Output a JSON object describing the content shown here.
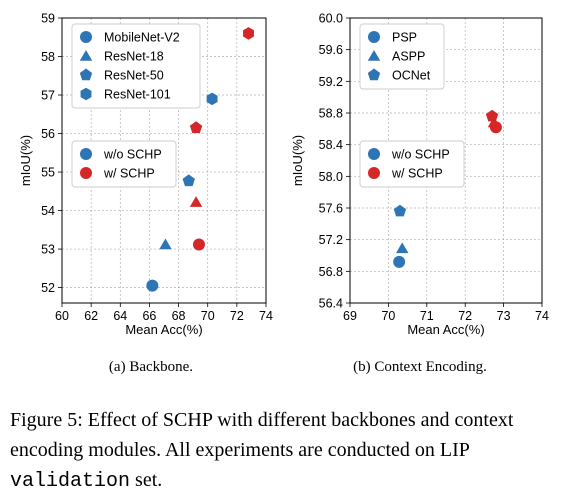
{
  "chart_data": [
    {
      "type": "scatter",
      "xlabel": "Mean Acc(%)",
      "ylabel": "mIoU(%)",
      "xlim": [
        60,
        74
      ],
      "ylim": [
        51.6,
        59
      ],
      "xticks": [
        "60",
        "62",
        "64",
        "66",
        "68",
        "70",
        "72",
        "74"
      ],
      "yticks": [
        "52",
        "53",
        "54",
        "55",
        "56",
        "57",
        "58",
        "59"
      ],
      "grid": true,
      "legends": [
        {
          "placement": "top-left",
          "entries": [
            {
              "label": "MobileNet-V2",
              "marker": "circle"
            },
            {
              "label": "ResNet-18",
              "marker": "triangle"
            },
            {
              "label": "ResNet-50",
              "marker": "pentagon"
            },
            {
              "label": "ResNet-101",
              "marker": "hexagon"
            }
          ]
        },
        {
          "placement": "center-left",
          "entries": [
            {
              "label": "w/o SCHP",
              "color": "#2e75b6"
            },
            {
              "label": "w/ SCHP",
              "color": "#d62728"
            }
          ]
        }
      ],
      "points": [
        {
          "model": "MobileNet-V2",
          "marker": "circle",
          "schp": false,
          "x": 66.2,
          "y": 52.05
        },
        {
          "model": "MobileNet-V2",
          "marker": "circle",
          "schp": true,
          "x": 69.4,
          "y": 53.12
        },
        {
          "model": "ResNet-18",
          "marker": "triangle",
          "schp": false,
          "x": 67.1,
          "y": 53.12
        },
        {
          "model": "ResNet-18",
          "marker": "triangle",
          "schp": true,
          "x": 69.2,
          "y": 54.22
        },
        {
          "model": "ResNet-50",
          "marker": "pentagon",
          "schp": false,
          "x": 68.7,
          "y": 54.77
        },
        {
          "model": "ResNet-50",
          "marker": "pentagon",
          "schp": true,
          "x": 69.2,
          "y": 56.15
        },
        {
          "model": "ResNet-101",
          "marker": "hexagon",
          "schp": false,
          "x": 70.3,
          "y": 56.9
        },
        {
          "model": "ResNet-101",
          "marker": "hexagon",
          "schp": true,
          "x": 72.8,
          "y": 58.6
        }
      ]
    },
    {
      "type": "scatter",
      "xlabel": "Mean Acc(%)",
      "ylabel": "mIoU(%)",
      "xlim": [
        69,
        74
      ],
      "ylim": [
        56.4,
        60
      ],
      "xticks": [
        "69",
        "70",
        "71",
        "72",
        "73",
        "74"
      ],
      "yticks": [
        "56.4",
        "56.8",
        "57.2",
        "57.6",
        "58.0",
        "58.4",
        "58.8",
        "59.2",
        "59.6",
        "60.0"
      ],
      "grid": true,
      "legends": [
        {
          "placement": "top-left",
          "entries": [
            {
              "label": "PSP",
              "marker": "circle"
            },
            {
              "label": "ASPP",
              "marker": "triangle"
            },
            {
              "label": "OCNet",
              "marker": "pentagon"
            }
          ]
        },
        {
          "placement": "center-left",
          "entries": [
            {
              "label": "w/o SCHP",
              "color": "#2e75b6"
            },
            {
              "label": "w/ SCHP",
              "color": "#d62728"
            }
          ]
        }
      ],
      "points": [
        {
          "model": "PSP",
          "marker": "circle",
          "schp": false,
          "x": 70.28,
          "y": 56.92
        },
        {
          "model": "PSP",
          "marker": "circle",
          "schp": true,
          "x": 72.8,
          "y": 58.62
        },
        {
          "model": "ASPP",
          "marker": "triangle",
          "schp": false,
          "x": 70.36,
          "y": 57.09
        },
        {
          "model": "ASPP",
          "marker": "triangle",
          "schp": true,
          "x": 72.75,
          "y": 58.68
        },
        {
          "model": "OCNet",
          "marker": "pentagon",
          "schp": false,
          "x": 70.3,
          "y": 57.56
        },
        {
          "model": "OCNet",
          "marker": "pentagon",
          "schp": true,
          "x": 72.7,
          "y": 58.76
        }
      ]
    }
  ],
  "colors": {
    "without_schp": "#2e75b6",
    "with_schp": "#d62728",
    "grid": "#b0b0b0"
  },
  "captions": {
    "subcaption_a": "(a) Backbone.",
    "subcaption_b": "(b) Context Encoding.",
    "figure_main": "Figure 5: Effect of SCHP with different backbones and context encoding modules. All experiments are conducted on LIP ",
    "figure_mono": "validation",
    "figure_end": " set."
  }
}
